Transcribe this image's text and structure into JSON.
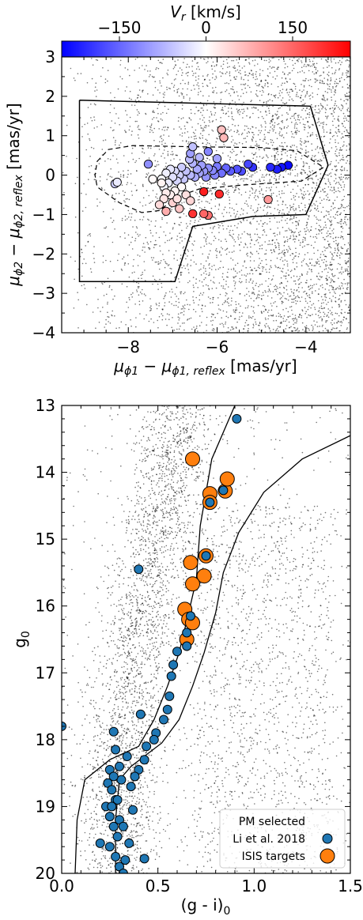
{
  "chart_data": [
    {
      "type": "scatter",
      "title": "",
      "xlabel": "μφ1 − μφ1,reflex [mas/yr]",
      "ylabel": "μφ2 − μφ2,reflex [mas/yr]",
      "xlim": [
        -9.5,
        -3.0
      ],
      "ylim": [
        -4.0,
        3.0
      ],
      "xticks": [
        -8,
        -6,
        -4
      ],
      "yticks": [
        -4,
        -3,
        -2,
        -1,
        0,
        1,
        2,
        3
      ],
      "colorbar": {
        "label": "Vr [km/s]",
        "range": [
          -250,
          250
        ],
        "ticks": [
          -150,
          0,
          150
        ],
        "colormap": "bwr",
        "colors": [
          "#0000ff",
          "#ffffff",
          "#ff0000"
        ]
      },
      "background_field": {
        "color": "#000000",
        "description_density": "dense, increasing toward right edge"
      },
      "selection_polygon": {
        "style": "solid",
        "vertices": [
          [
            -9.1,
            1.9
          ],
          [
            -3.9,
            1.75
          ],
          [
            -3.5,
            0.25
          ],
          [
            -4.0,
            -1.0
          ],
          [
            -5.2,
            -1.05
          ],
          [
            -6.55,
            -1.3
          ],
          [
            -6.95,
            -2.7
          ],
          [
            -9.1,
            -2.7
          ],
          [
            -9.1,
            1.9
          ]
        ]
      },
      "track_contour": {
        "style": "dashed",
        "vertices": [
          [
            -8.7,
            0.35
          ],
          [
            -8.45,
            0.65
          ],
          [
            -7.9,
            0.75
          ],
          [
            -6.5,
            0.72
          ],
          [
            -5.0,
            0.7
          ],
          [
            -4.2,
            0.62
          ],
          [
            -3.6,
            0.2
          ],
          [
            -4.1,
            -0.15
          ],
          [
            -5.4,
            -0.25
          ],
          [
            -6.4,
            -0.35
          ],
          [
            -6.9,
            -0.55
          ],
          [
            -7.3,
            -0.9
          ],
          [
            -7.7,
            -0.95
          ],
          [
            -8.2,
            -0.7
          ],
          [
            -8.7,
            -0.3
          ],
          [
            -8.75,
            0.0
          ],
          [
            -8.7,
            0.35
          ]
        ]
      },
      "series": [
        {
          "points": [
            [
              -4.4,
              0.25,
              -240
            ],
            [
              -4.55,
              0.2,
              -230
            ],
            [
              -4.65,
              0.15,
              -220
            ],
            [
              -4.8,
              0.2,
              -210
            ],
            [
              -5.2,
              0.2,
              -200
            ],
            [
              -5.3,
              0.28,
              -180
            ],
            [
              -5.45,
              0.1,
              -175
            ],
            [
              -5.55,
              0.15,
              -170
            ],
            [
              -5.7,
              0.1,
              -160
            ],
            [
              -5.8,
              0.18,
              -150
            ],
            [
              -5.9,
              0.05,
              -140
            ],
            [
              -6.0,
              0.22,
              -130
            ],
            [
              -6.05,
              0.0,
              -120
            ],
            [
              -6.1,
              0.12,
              -115
            ],
            [
              -6.2,
              0.18,
              -110
            ],
            [
              -6.25,
              -0.05,
              -105
            ],
            [
              -6.3,
              0.1,
              -100
            ],
            [
              -6.35,
              0.25,
              -95
            ],
            [
              -6.4,
              0.05,
              -90
            ],
            [
              -6.45,
              0.15,
              -85
            ],
            [
              -6.5,
              -0.05,
              -80
            ],
            [
              -6.55,
              0.3,
              -75
            ],
            [
              -6.6,
              0.0,
              -70
            ],
            [
              -6.62,
              0.4,
              -65
            ],
            [
              -6.7,
              0.1,
              -60
            ],
            [
              -6.75,
              -0.1,
              -55
            ],
            [
              -6.8,
              0.2,
              -50
            ],
            [
              -6.85,
              0.0,
              -45
            ],
            [
              -6.9,
              -0.15,
              -40
            ],
            [
              -6.95,
              0.1,
              -35
            ],
            [
              -7.0,
              -0.05,
              -30
            ],
            [
              -7.05,
              0.15,
              -25
            ],
            [
              -7.1,
              -0.2,
              -20
            ],
            [
              -7.15,
              0.05,
              -15
            ],
            [
              -7.2,
              -0.3,
              -10
            ],
            [
              -7.25,
              -0.1,
              -5
            ],
            [
              -6.6,
              0.55,
              -95
            ],
            [
              -6.4,
              0.45,
              -70
            ],
            [
              -6.2,
              0.6,
              -120
            ],
            [
              -6.0,
              0.42,
              -90
            ],
            [
              -6.55,
              0.72,
              -60
            ],
            [
              -7.55,
              0.28,
              -110
            ],
            [
              -8.3,
              -0.22,
              -50
            ],
            [
              -8.25,
              -0.18,
              -20
            ],
            [
              -6.8,
              -0.3,
              5
            ],
            [
              -6.95,
              -0.4,
              10
            ],
            [
              -7.05,
              -0.5,
              15
            ],
            [
              -7.15,
              -0.45,
              20
            ],
            [
              -7.2,
              -0.6,
              25
            ],
            [
              -6.7,
              -0.5,
              30
            ],
            [
              -6.6,
              -0.65,
              40
            ],
            [
              -7.0,
              -0.7,
              45
            ],
            [
              -7.3,
              -0.75,
              35
            ],
            [
              -6.85,
              -0.85,
              55
            ],
            [
              -7.25,
              -0.2,
              12
            ],
            [
              -6.9,
              -0.6,
              28
            ],
            [
              -5.9,
              1.15,
              60
            ],
            [
              -5.85,
              0.95,
              70
            ],
            [
              -4.85,
              -0.62,
              100
            ],
            [
              -6.2,
              -1.02,
              140
            ],
            [
              -6.3,
              -0.98,
              150
            ],
            [
              -6.55,
              -0.98,
              200
            ],
            [
              -5.95,
              -0.48,
              210
            ],
            [
              -6.3,
              -0.42,
              220
            ],
            [
              -7.15,
              -0.92,
              80
            ],
            [
              -7.45,
              -0.1,
              5
            ]
          ]
        }
      ]
    },
    {
      "type": "scatter",
      "title": "",
      "xlabel": "(g - i)0",
      "ylabel": "g0",
      "xlim": [
        0.0,
        1.5
      ],
      "ylim": [
        20,
        13
      ],
      "xticks": [
        0.0,
        0.5,
        1.0,
        1.5
      ],
      "yticks": [
        13,
        14,
        15,
        16,
        17,
        18,
        19,
        20
      ],
      "isochrone_bounds": [
        {
          "style": "solid",
          "points": [
            [
              0.9,
              13.0
            ],
            [
              0.78,
              13.8
            ],
            [
              0.72,
              14.8
            ],
            [
              0.7,
              15.6
            ],
            [
              0.66,
              16.1
            ],
            [
              0.61,
              16.7
            ],
            [
              0.55,
              17.2
            ],
            [
              0.48,
              17.7
            ],
            [
              0.4,
              18.1
            ],
            [
              0.25,
              18.3
            ],
            [
              0.12,
              18.6
            ],
            [
              0.08,
              19.2
            ],
            [
              0.07,
              20.0
            ]
          ]
        },
        {
          "style": "solid",
          "points": [
            [
              1.5,
              13.45
            ],
            [
              1.25,
              13.8
            ],
            [
              1.05,
              14.3
            ],
            [
              0.92,
              14.9
            ],
            [
              0.84,
              15.5
            ],
            [
              0.8,
              16.1
            ],
            [
              0.74,
              16.7
            ],
            [
              0.68,
              17.2
            ],
            [
              0.61,
              17.7
            ],
            [
              0.52,
              18.05
            ],
            [
              0.36,
              18.4
            ],
            [
              0.3,
              18.6
            ],
            [
              0.28,
              19.2
            ],
            [
              0.28,
              20.0
            ]
          ]
        }
      ],
      "series": [
        {
          "name": "Li et al. 2018",
          "color": "#1f77b4",
          "points": [
            [
              0.91,
              13.2
            ],
            [
              0.77,
              14.45
            ],
            [
              0.75,
              15.25
            ],
            [
              0.84,
              14.27
            ],
            [
              0.4,
              15.45
            ],
            [
              0.67,
              16.15
            ],
            [
              0.65,
              16.4
            ],
            [
              0.65,
              16.6
            ],
            [
              0.6,
              16.68
            ],
            [
              0.58,
              16.88
            ],
            [
              0.57,
              17.05
            ],
            [
              0.56,
              17.35
            ],
            [
              0.55,
              17.55
            ],
            [
              0.53,
              17.7
            ],
            [
              0.49,
              17.9
            ],
            [
              0.48,
              18.0
            ],
            [
              0.44,
              18.1
            ],
            [
              0.43,
              18.3
            ],
            [
              0.4,
              18.45
            ],
            [
              0.38,
              18.55
            ],
            [
              0.41,
              17.62
            ],
            [
              0.27,
              17.88
            ],
            [
              0.28,
              18.15
            ],
            [
              0.25,
              18.45
            ],
            [
              0.24,
              18.65
            ],
            [
              0.26,
              18.75
            ],
            [
              0.28,
              18.9
            ],
            [
              0.23,
              19.0
            ],
            [
              0.25,
              19.15
            ],
            [
              0.27,
              19.3
            ],
            [
              0.29,
              19.45
            ],
            [
              0.25,
              19.6
            ],
            [
              0.28,
              19.75
            ],
            [
              0.3,
              19.9
            ],
            [
              0.32,
              20.0
            ],
            [
              0.35,
              19.55
            ],
            [
              0.33,
              19.8
            ],
            [
              0.31,
              18.6
            ],
            [
              0.3,
              18.4
            ],
            [
              0.34,
              18.25
            ],
            [
              0.36,
              18.7
            ],
            [
              0.37,
              19.05
            ],
            [
              0.3,
              19.2
            ],
            [
              0.43,
              19.78
            ],
            [
              0.2,
              19.55
            ],
            [
              0.0,
              17.8
            ],
            [
              0.26,
              19.0
            ],
            [
              0.32,
              19.3
            ],
            [
              0.29,
              18.9
            ],
            [
              0.27,
              18.55
            ]
          ]
        },
        {
          "name": "ISIS targets",
          "color": "#ff7f0e",
          "points": [
            [
              0.68,
              13.8
            ],
            [
              0.77,
              14.32
            ],
            [
              0.77,
              14.45
            ],
            [
              0.85,
              14.28
            ],
            [
              0.86,
              14.1
            ],
            [
              0.75,
              15.25
            ],
            [
              0.67,
              15.35
            ],
            [
              0.74,
              15.55
            ],
            [
              0.68,
              15.67
            ],
            [
              0.64,
              16.05
            ],
            [
              0.66,
              16.2
            ],
            [
              0.68,
              16.25
            ],
            [
              0.65,
              16.5
            ]
          ]
        }
      ],
      "legend": {
        "placement": "lower right",
        "entries": [
          "PM selected",
          "Li et al. 2018",
          "ISIS targets"
        ]
      }
    }
  ]
}
